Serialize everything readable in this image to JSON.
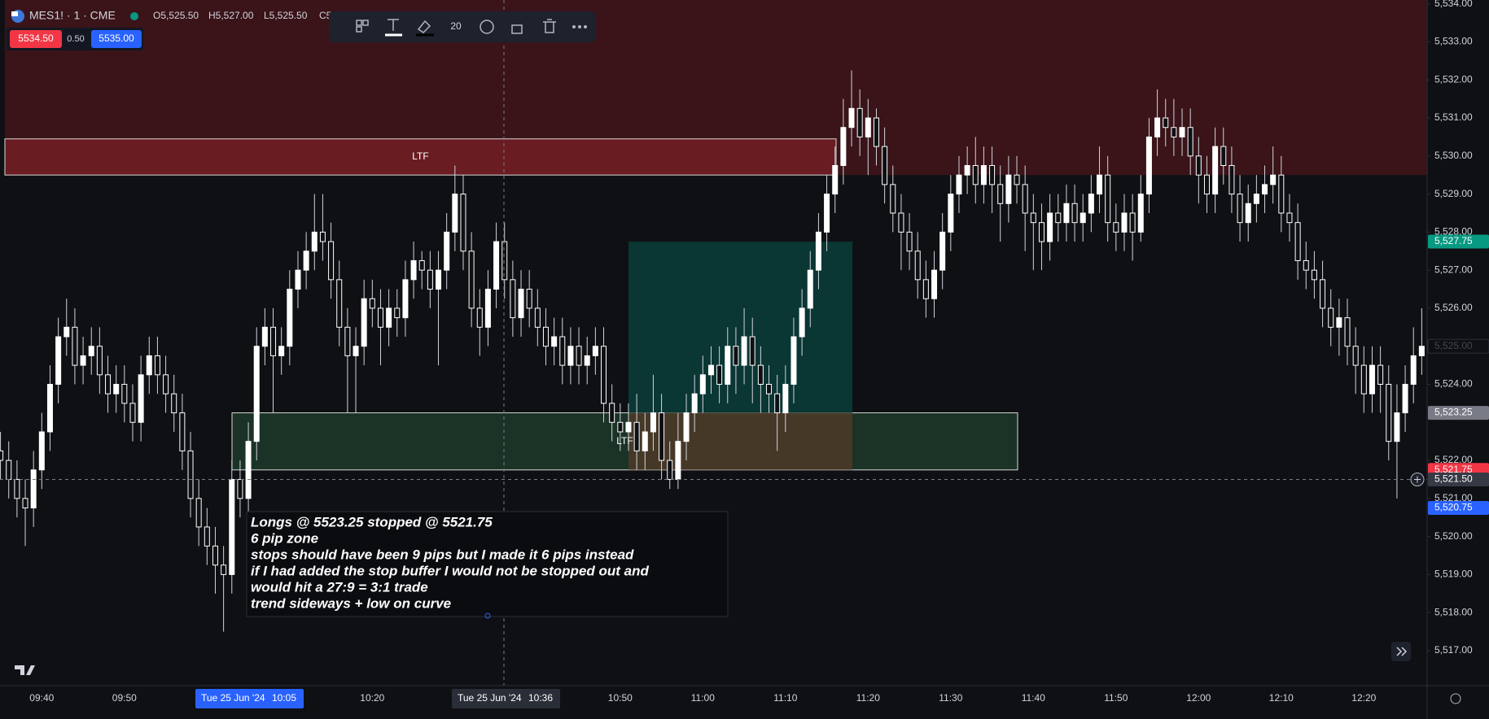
{
  "header": {
    "symbol": "MES1! · 1 · CME",
    "ohlc": [
      "O5,525.50",
      "H5,527.00",
      "L5,525.50",
      "C5,"
    ],
    "bid": "5534.50",
    "spread": "0.50",
    "ask": "5535.00"
  },
  "toolbar": {
    "line_width": "20"
  },
  "crosshair": {
    "date": "Tue 25 Jun '24",
    "time": "10:05",
    "price": 5521.5,
    "price_label": "5,521.50"
  },
  "marker": {
    "date": "Tue 25 Jun '24",
    "time": "10:36"
  },
  "note": {
    "lines": [
      "Longs @ 5523.25 stopped @ 5521.75",
      "6 pip zone",
      "stops should have been 9 pips but I made it 6 pips instead",
      "if I had added the stop buffer I would not be stopped out and",
      "would hit a 27:9 = 3:1 trade",
      "trend sideways + low on curve"
    ]
  },
  "chart_data": {
    "type": "candlestick",
    "up_color": "#ffffff",
    "down_color": "#0f1014",
    "ylim": [
      5516.08,
      5534.1
    ],
    "yticks": [
      {
        "value": 5517,
        "label": "5,517.00"
      },
      {
        "value": 5518,
        "label": "5,518.00"
      },
      {
        "value": 5519,
        "label": "5,519.00"
      },
      {
        "value": 5520,
        "label": "5,520.00"
      },
      {
        "value": 5521,
        "label": "5,521.00"
      },
      {
        "value": 5522,
        "label": "5,522.00"
      },
      {
        "value": 5524,
        "label": "5,524.00"
      },
      {
        "value": 5526,
        "label": "5,526.00"
      },
      {
        "value": 5527,
        "label": "5,527.00"
      },
      {
        "value": 5528,
        "label": "5,528.00"
      },
      {
        "value": 5529,
        "label": "5,529.00"
      },
      {
        "value": 5530,
        "label": "5,530.00"
      },
      {
        "value": 5531,
        "label": "5,531.00"
      },
      {
        "value": 5532,
        "label": "5,532.00"
      },
      {
        "value": 5533,
        "label": "5,533.00"
      },
      {
        "value": 5534,
        "label": "5,534.00"
      }
    ],
    "grid": false,
    "categories": [
      null,
      null,
      null,
      null,
      null,
      "09:40",
      null,
      null,
      null,
      null,
      null,
      null,
      null,
      null,
      null,
      "09:50",
      null,
      null,
      null,
      null,
      null,
      null,
      null,
      null,
      null,
      null,
      null,
      null,
      null,
      null,
      null,
      null,
      null,
      null,
      null,
      null,
      null,
      null,
      null,
      null,
      null,
      null,
      null,
      null,
      null,
      "10:20",
      null,
      null,
      null,
      null,
      null,
      null,
      null,
      null,
      null,
      null,
      null,
      null,
      null,
      null,
      null,
      null,
      null,
      null,
      null,
      null,
      null,
      null,
      null,
      null,
      null,
      null,
      null,
      null,
      null,
      "10:50",
      null,
      null,
      null,
      null,
      null,
      null,
      null,
      null,
      null,
      "11:00",
      null,
      null,
      null,
      null,
      null,
      null,
      null,
      null,
      null,
      "11:10",
      null,
      null,
      null,
      null,
      null,
      null,
      null,
      null,
      null,
      "11:20",
      null,
      null,
      null,
      null,
      null,
      null,
      null,
      null,
      null,
      "11:30",
      null,
      null,
      null,
      null,
      null,
      null,
      null,
      null,
      null,
      "11:40",
      null,
      null,
      null,
      null,
      null,
      null,
      null,
      null,
      null,
      "11:50",
      null,
      null,
      null,
      null,
      null,
      null,
      null,
      null,
      null,
      "12:00",
      null,
      null,
      null,
      null,
      null,
      null,
      null,
      null,
      null,
      "12:10",
      null,
      null,
      null,
      null,
      null,
      null,
      null,
      null,
      null,
      "12:20",
      null,
      null,
      null,
      null,
      null,
      null,
      null
    ],
    "open": [
      5522.25,
      5522,
      5521.5,
      5521,
      5520.75,
      5521.75,
      5522.75,
      5524,
      5525.25,
      5525.5,
      5524.5,
      5524.75,
      5525,
      5524.25,
      5523.75,
      5524,
      5523.5,
      5523,
      5524.25,
      5524.75,
      5524.25,
      5523.75,
      5523.25,
      5522.25,
      5521,
      5520.25,
      5519.75,
      5519.25,
      5519,
      5521.5,
      5521,
      5522.5,
      5525,
      5525.5,
      5524.75,
      5525,
      5526.5,
      5527,
      5527.5,
      5528,
      5527.75,
      5526.75,
      5525.5,
      5524.75,
      5525,
      5526.25,
      5526,
      5525.5,
      5526,
      5525.75,
      5526.75,
      5527.25,
      5527,
      5526.5,
      5527,
      5528,
      5529,
      5527.5,
      5526,
      5525.5,
      5526.5,
      5527.75,
      5526.75,
      5525.75,
      5526.5,
      5526,
      5525.5,
      5525,
      5525.25,
      5524.5,
      5525,
      5524.5,
      5524.75,
      5525,
      5523.5,
      5523,
      5522.75,
      5523,
      5522.25,
      5522.75,
      5523.25,
      5522,
      5521.5,
      5522.5,
      5523.25,
      5523.75,
      5524.25,
      5524.5,
      5524,
      5525,
      5524.5,
      5525.25,
      5524.5,
      5524,
      5523.75,
      5523.25,
      5524,
      5525.25,
      5526,
      5527,
      5528,
      5529,
      5529.75,
      5530.75,
      5531.25,
      5530.5,
      5531,
      5530.25,
      5529.25,
      5528.5,
      5528,
      5527.5,
      5526.75,
      5526.25,
      5527,
      5528,
      5529,
      5529.5,
      5529.75,
      5529.25,
      5529.75,
      5529.25,
      5528.75,
      5529.5,
      5529.25,
      5528.5,
      5528.25,
      5527.75,
      5528.5,
      5528.25,
      5528.75,
      5528.25,
      5528.5,
      5529,
      5529.5,
      5528.25,
      5528,
      5528.5,
      5528,
      5529,
      5530.5,
      5531,
      5530.75,
      5530.5,
      5530.75,
      5530,
      5529.5,
      5529,
      5530.25,
      5529.75,
      5529,
      5528.25,
      5528.75,
      5529,
      5529.25,
      5529.5,
      5528.5,
      5528.25,
      5527.25,
      5527,
      5526.75,
      5526,
      5525.5,
      5525.75,
      5525,
      5524.5,
      5523.75,
      5524.5,
      5524,
      5522.5,
      5523.25,
      5524,
      5524.75
    ],
    "high": [
      5522.75,
      5522.5,
      5522,
      5521.5,
      5522.25,
      5523.25,
      5524.5,
      5525.75,
      5526.25,
      5526,
      5525.25,
      5525.5,
      5525.5,
      5524.75,
      5524.5,
      5524.5,
      5524,
      5524.75,
      5525.25,
      5525.25,
      5524.75,
      5524.25,
      5523.75,
      5522.75,
      5521.5,
      5520.75,
      5520.25,
      5519.75,
      5522,
      5522,
      5523,
      5525.5,
      5526,
      5526,
      5525.5,
      5527,
      5527.5,
      5528,
      5529,
      5529,
      5528.25,
      5527.25,
      5526,
      5525.5,
      5526.75,
      5526.75,
      5526.5,
      5526.5,
      5526.5,
      5527.25,
      5527.75,
      5527.5,
      5527.5,
      5527.5,
      5528.5,
      5529.75,
      5529.5,
      5528,
      5526.5,
      5527,
      5528.25,
      5528.25,
      5527.25,
      5527,
      5527,
      5526.5,
      5526,
      5525.75,
      5525.75,
      5525.5,
      5525.5,
      5525.25,
      5525.5,
      5525.5,
      5524,
      5523.5,
      5523.5,
      5523.75,
      5523.25,
      5524.25,
      5523.75,
      5522.5,
      5523.25,
      5523.75,
      5524.25,
      5524.75,
      5525,
      5525,
      5525.5,
      5525.5,
      5526,
      5525.75,
      5525,
      5524.5,
      5524.25,
      5524.5,
      5525.75,
      5526.5,
      5527.5,
      5528.5,
      5529.5,
      5530.25,
      5531.5,
      5532.25,
      5531.75,
      5531.5,
      5531.25,
      5530.75,
      5529.75,
      5529,
      5528.5,
      5528,
      5527.25,
      5527.5,
      5528.5,
      5529.5,
      5530,
      5530.25,
      5530.5,
      5530.25,
      5530.25,
      5529.75,
      5530,
      5530,
      5529.75,
      5529,
      5528.75,
      5529,
      5529,
      5529.25,
      5529.25,
      5529,
      5529.5,
      5530.25,
      5530,
      5528.75,
      5529,
      5529,
      5529.5,
      5531,
      5531.75,
      5531.5,
      5531.5,
      5531.25,
      5531.25,
      5530.5,
      5530,
      5530.75,
      5530.75,
      5530.25,
      5529.5,
      5529.25,
      5529.5,
      5529.75,
      5530.25,
      5530,
      5529,
      5528.75,
      5527.75,
      5527.5,
      5527.25,
      5526.5,
      5526.25,
      5526.25,
      5525.5,
      5525,
      5525,
      5525,
      5524.5,
      5524,
      5524.5,
      5525.5,
      5526
    ],
    "low": [
      5521.5,
      5521,
      5520.5,
      5519.75,
      5520.25,
      5521.25,
      5522.25,
      5523.5,
      5524.75,
      5524,
      5524,
      5524.25,
      5523.75,
      5523.25,
      5523.25,
      5523,
      5522.5,
      5522.5,
      5523.75,
      5523.75,
      5523.25,
      5522.75,
      5521.75,
      5520.5,
      5519.75,
      5519.25,
      5518.5,
      5517.5,
      5518.5,
      5520.5,
      5520.5,
      5522,
      5524.5,
      5523.25,
      5524.25,
      5524.5,
      5526,
      5526.5,
      5527,
      5527.25,
      5526.25,
      5525,
      5523.25,
      5523.25,
      5524.5,
      5525.5,
      5524.5,
      5525,
      5525.25,
      5525.25,
      5526.25,
      5526.5,
      5526,
      5524.5,
      5526.5,
      5527.5,
      5527,
      5525.5,
      5524.75,
      5525,
      5526,
      5526.25,
      5525.25,
      5525.25,
      5525.5,
      5525,
      5524.5,
      5524.5,
      5524,
      5524,
      5524,
      5524,
      5524.25,
      5523,
      5522.5,
      5522.25,
      5522.25,
      5521.75,
      5521.75,
      5522.25,
      5521.5,
      5521.25,
      5521.25,
      5522,
      5522.75,
      5523.25,
      5523.75,
      5523.5,
      5523.5,
      5523.75,
      5524,
      5523.5,
      5523.25,
      5523.25,
      5522.25,
      5522.75,
      5523.5,
      5524.75,
      5525.5,
      5526.5,
      5527.5,
      5528.5,
      5529.25,
      5530.25,
      5530,
      5529.5,
      5529.75,
      5528.75,
      5528,
      5527,
      5527,
      5526.25,
      5525.75,
      5525.75,
      5526.5,
      5527.5,
      5528.5,
      5529,
      5528.75,
      5528.75,
      5528.5,
      5527.75,
      5528.25,
      5528.75,
      5527.5,
      5527,
      5527,
      5527.25,
      5527.75,
      5527.75,
      5527.75,
      5527.75,
      5528,
      5528.5,
      5527.75,
      5527.5,
      5527.5,
      5527.25,
      5527.75,
      5528.5,
      5530,
      5530.25,
      5530,
      5530,
      5529.5,
      5528.75,
      5528.5,
      5528.5,
      5529.25,
      5528.5,
      5527.75,
      5527.75,
      5528.25,
      5528.5,
      5528.75,
      5528,
      5527.75,
      5526.75,
      5526.5,
      5526.25,
      5525.5,
      5525,
      5524.75,
      5524.5,
      5523.75,
      5523.25,
      5523.25,
      5523.25,
      5522,
      5521,
      5522.75,
      5523.5,
      5524.25
    ],
    "close": [
      5522,
      5521.5,
      5521,
      5520.75,
      5521.75,
      5522.75,
      5524,
      5525.25,
      5525.5,
      5524.5,
      5524.75,
      5525,
      5524.25,
      5523.75,
      5524,
      5523.5,
      5523,
      5524.25,
      5524.75,
      5524.25,
      5523.75,
      5523.25,
      5522.25,
      5521,
      5520.25,
      5519.75,
      5519.25,
      5519,
      5521.5,
      5521,
      5522.5,
      5525,
      5525.5,
      5524.75,
      5525,
      5526.5,
      5527,
      5527.5,
      5528,
      5527.75,
      5526.75,
      5525.5,
      5524.75,
      5525,
      5526.25,
      5526,
      5525.5,
      5526,
      5525.75,
      5526.75,
      5527.25,
      5527,
      5526.5,
      5527,
      5528,
      5529,
      5527.5,
      5526,
      5525.5,
      5526.5,
      5527.75,
      5526.75,
      5525.75,
      5526.5,
      5526,
      5525.5,
      5525,
      5525.25,
      5524.5,
      5525,
      5524.5,
      5524.75,
      5525,
      5523.5,
      5523,
      5522.75,
      5523,
      5522.25,
      5522.75,
      5523.25,
      5522,
      5521.5,
      5522.5,
      5523.25,
      5523.75,
      5524.25,
      5524.5,
      5524,
      5525,
      5524.5,
      5525.25,
      5524.5,
      5524,
      5523.75,
      5523.25,
      5524,
      5525.25,
      5526,
      5527,
      5528,
      5529,
      5529.75,
      5530.75,
      5531.25,
      5530.5,
      5531,
      5530.25,
      5529.25,
      5528.5,
      5528,
      5527.5,
      5526.75,
      5526.25,
      5527,
      5528,
      5529,
      5529.5,
      5529.75,
      5529.25,
      5529.75,
      5529.25,
      5528.75,
      5529.5,
      5529.25,
      5528.5,
      5528.25,
      5527.75,
      5528.5,
      5528.25,
      5528.75,
      5528.25,
      5528.5,
      5529,
      5529.5,
      5528.25,
      5528,
      5528.5,
      5528,
      5529,
      5530.5,
      5531,
      5530.75,
      5530.5,
      5530.75,
      5530,
      5529.5,
      5529,
      5530.25,
      5529.75,
      5529,
      5528.25,
      5528.75,
      5529,
      5529.25,
      5529.5,
      5528.5,
      5528.25,
      5527.25,
      5527,
      5526.75,
      5526,
      5525.5,
      5525.75,
      5525,
      5524.5,
      5523.75,
      5524.5,
      5524,
      5522.5,
      5523.25,
      5524,
      5524.75,
      5525
    ],
    "zones": [
      {
        "top": 5534.1,
        "bottom": 5529.5,
        "color": "#3a1419"
      },
      {
        "label": "LTF",
        "top": 5530.45,
        "bottom": 5529.5,
        "color": "#6a1c23"
      },
      {
        "label": "LTF",
        "top": 5523.25,
        "bottom": 5521.75,
        "color": "#1c3a29"
      }
    ],
    "position": {
      "target": 5527.75,
      "entry": 5523.25,
      "stop": 5521.75,
      "profit_color": "#0a3b36",
      "loss_color": "#5a3a28"
    },
    "price_tags": [
      {
        "value": 5527.75,
        "label": "5,527.75",
        "color": "#089981"
      },
      {
        "value": 5525,
        "label": "5,525.00",
        "color": "#0f1014"
      },
      {
        "value": 5523.25,
        "label": "5,523.25",
        "color": "#787b86"
      },
      {
        "value": 5521.75,
        "label": "5,521.75",
        "color": "#f23645"
      },
      {
        "value": 5520.75,
        "label": "5,520.75",
        "color": "#2962ff"
      }
    ]
  }
}
